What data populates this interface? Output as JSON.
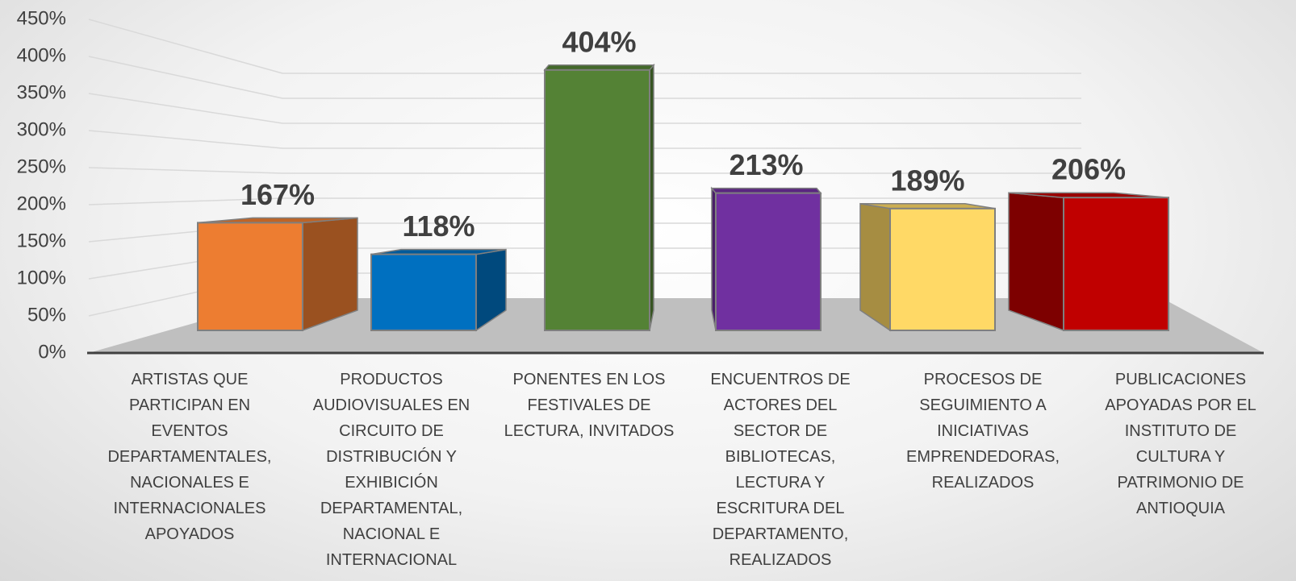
{
  "chart_data": {
    "type": "bar3d",
    "categories": [
      "ARTISTAS QUE PARTICIPAN EN EVENTOS DEPARTAMENTALES, NACIONALES E INTERNACIONALES APOYADOS",
      "PRODUCTOS AUDIOVISUALES EN CIRCUITO DE DISTRIBUCIÓN Y EXHIBICIÓN DEPARTAMENTAL, NACIONAL E INTERNACIONAL",
      "PONENTES EN LOS FESTIVALES DE LECTURA, INVITADOS",
      "ENCUENTROS DE ACTORES DEL SECTOR DE BIBLIOTECAS, LECTURA Y ESCRITURA DEL DEPARTAMENTO, REALIZADOS",
      "PROCESOS DE SEGUIMIENTO A INICIATIVAS EMPRENDEDORAS, REALIZADOS",
      "PUBLICACIONES APOYADAS POR EL INSTITUTO DE CULTURA Y PATRIMONIO DE ANTIOQUIA"
    ],
    "values": [
      167,
      118,
      404,
      213,
      189,
      206
    ],
    "value_labels": [
      "167%",
      "118%",
      "404%",
      "213%",
      "189%",
      "206%"
    ],
    "colors": [
      "#ed7d31",
      "#0070c0",
      "#548235",
      "#7030a0",
      "#ffd966",
      "#c00000"
    ],
    "ylim": [
      0,
      450
    ],
    "yticks": [
      {
        "value": 0,
        "label": "0%"
      },
      {
        "value": 50,
        "label": "50%"
      },
      {
        "value": 100,
        "label": "100%"
      },
      {
        "value": 150,
        "label": "150%"
      },
      {
        "value": 200,
        "label": "200%"
      },
      {
        "value": 250,
        "label": "250%"
      },
      {
        "value": 300,
        "label": "300%"
      },
      {
        "value": 350,
        "label": "350%"
      },
      {
        "value": 400,
        "label": "400%"
      },
      {
        "value": 450,
        "label": "450%"
      }
    ],
    "grid": true
  }
}
